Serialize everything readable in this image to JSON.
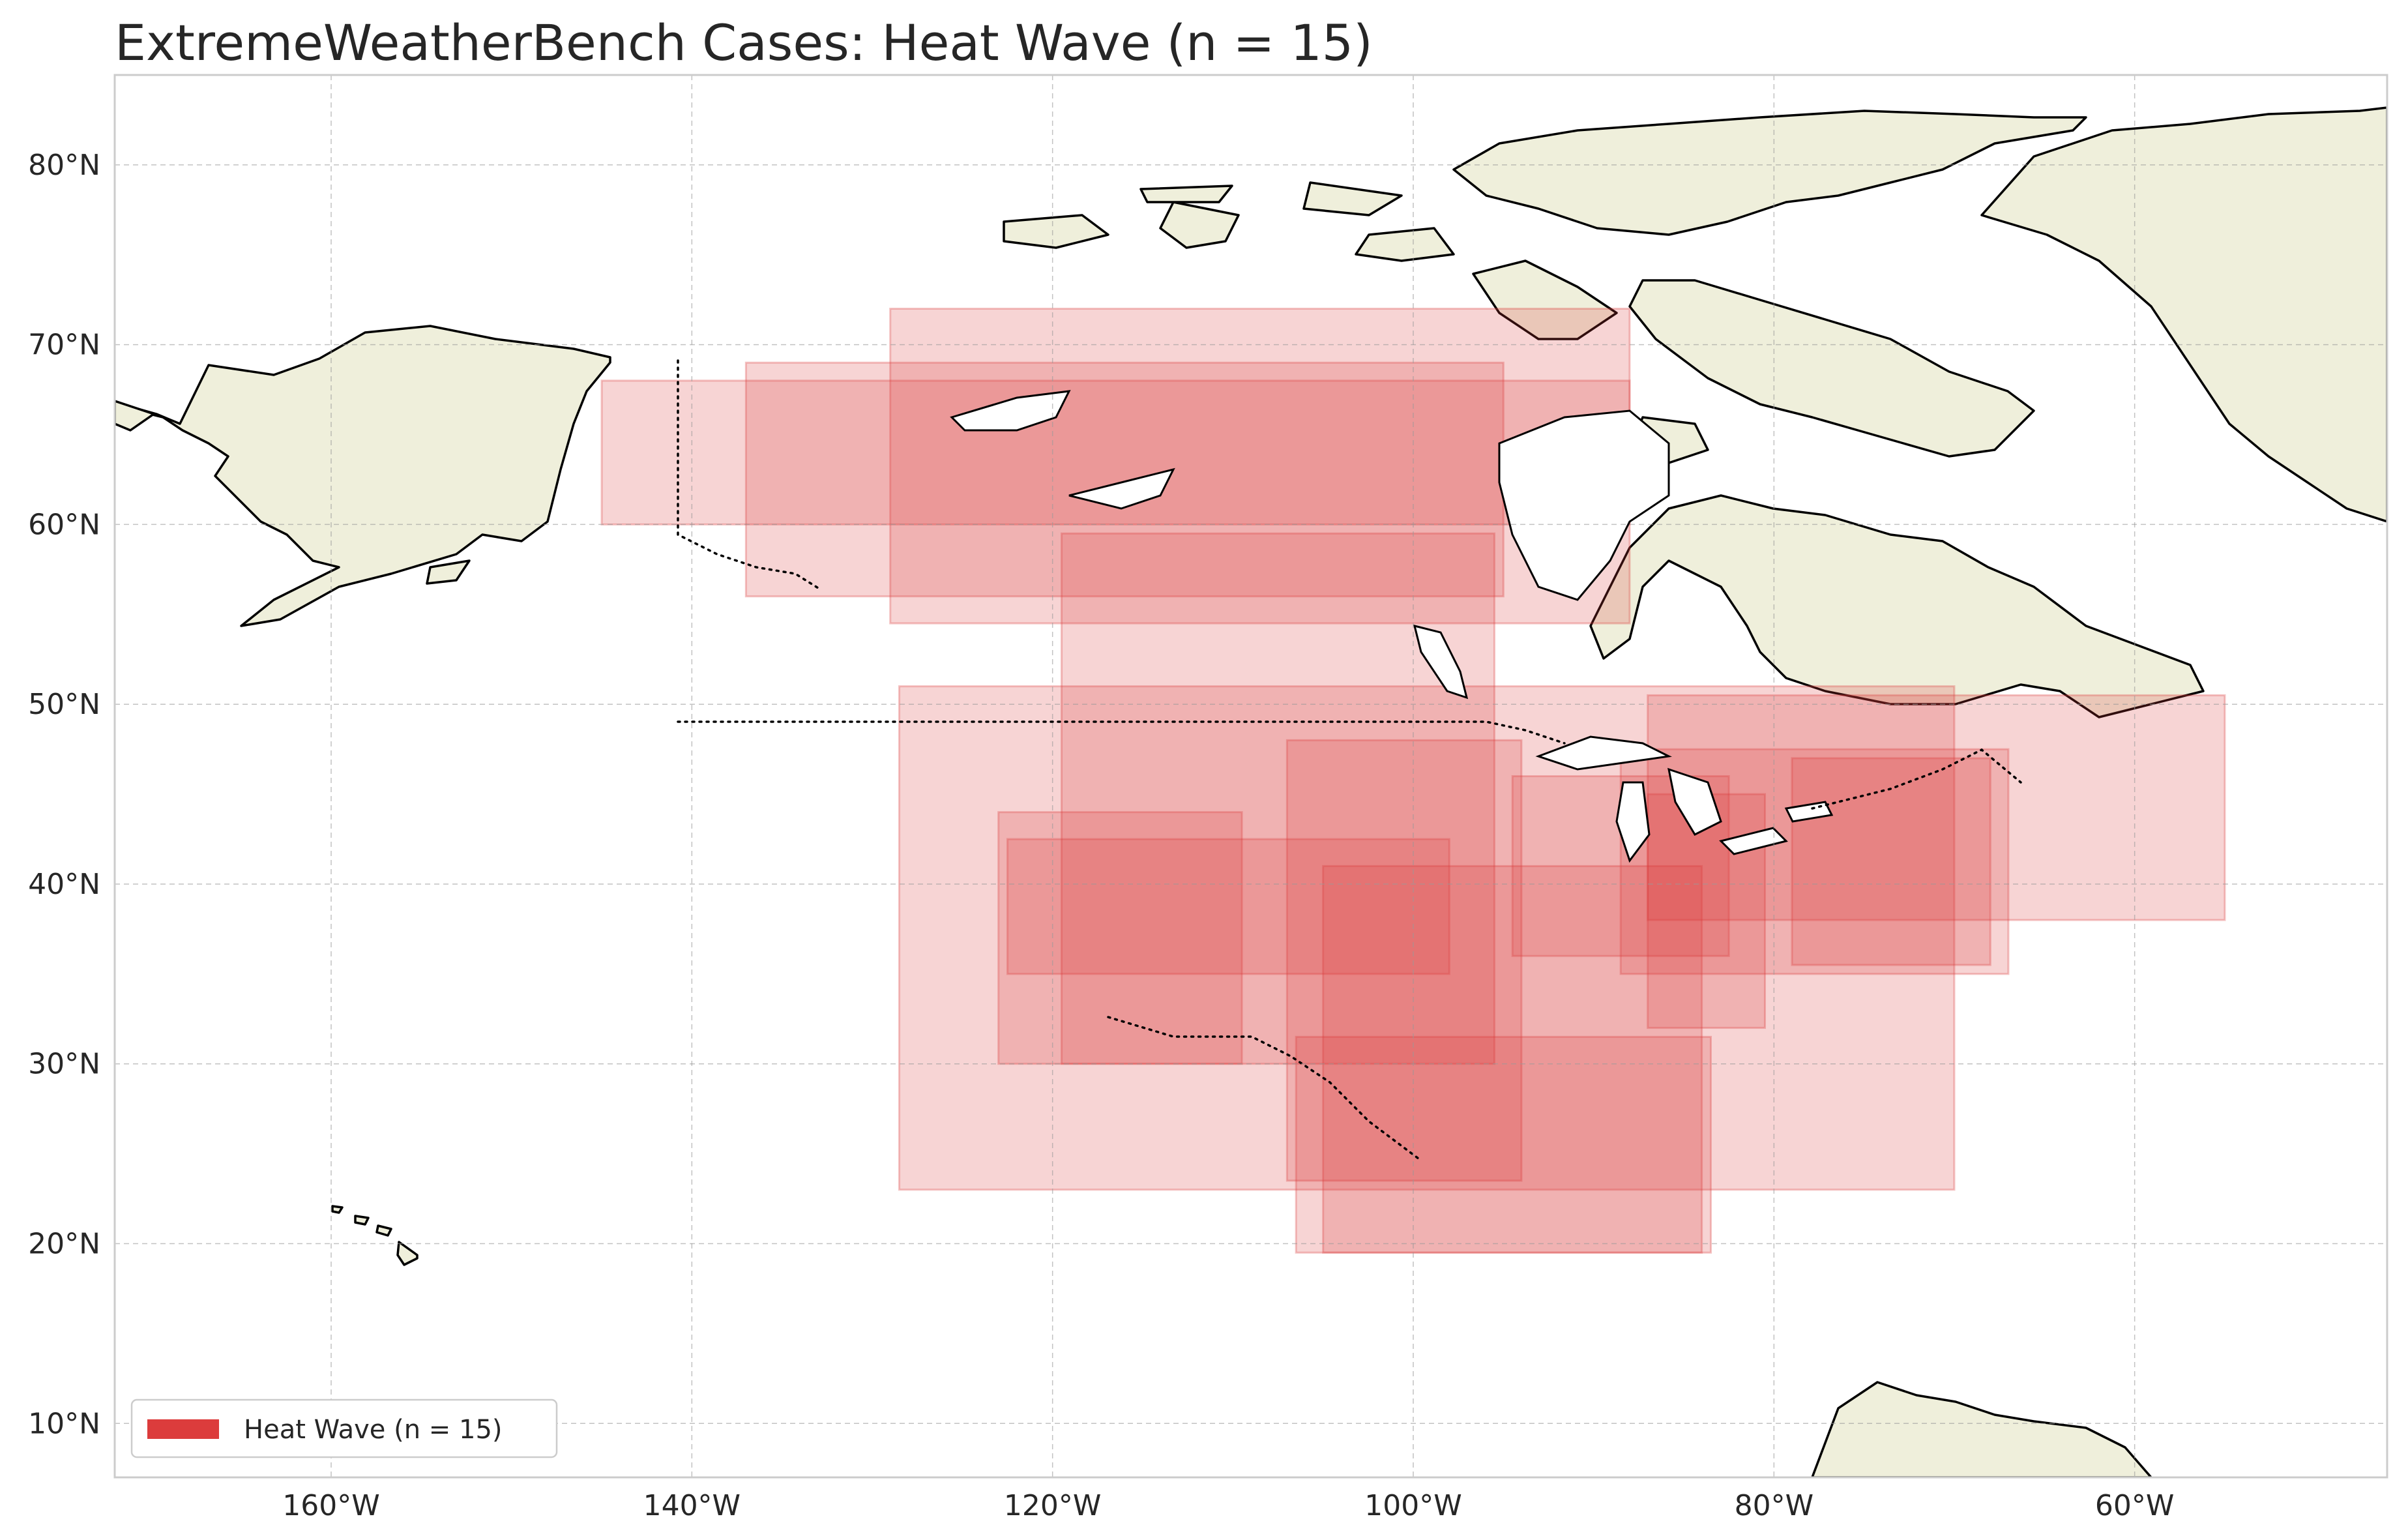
{
  "title": "ExtremeWeatherBench Cases: Heat Wave (n = 15)",
  "legend": {
    "label": "Heat Wave (n = 15)",
    "color": "#dc3c3c"
  },
  "colors": {
    "land": "#efefdb",
    "ocean": "#ffffff",
    "box": "#dc3c3c"
  },
  "axes": {
    "x_ticks": [
      "160°W",
      "140°W",
      "120°W",
      "100°W",
      "80°W",
      "60°W"
    ],
    "y_ticks": [
      "10°N",
      "20°N",
      "30°N",
      "40°N",
      "50°N",
      "60°N",
      "70°N",
      "80°N"
    ]
  },
  "map_data": {
    "type": "geographic_boxes",
    "projection": "equirectangular",
    "extent": {
      "lon": [
        -172,
        -46
      ],
      "lat": [
        7,
        85
      ]
    },
    "gridlines": true,
    "legend_position": "lower-left",
    "boxes": [
      {
        "lon": [
          -145,
          -88
        ],
        "lat": [
          60,
          68
        ]
      },
      {
        "lon": [
          -137,
          -95
        ],
        "lat": [
          56,
          69
        ]
      },
      {
        "lon": [
          -129,
          -88
        ],
        "lat": [
          54.5,
          72
        ]
      },
      {
        "lon": [
          -119.5,
          -95.5
        ],
        "lat": [
          30,
          59.5
        ]
      },
      {
        "lon": [
          -128.5,
          -70
        ],
        "lat": [
          23,
          51
        ]
      },
      {
        "lon": [
          -123,
          -109.5
        ],
        "lat": [
          30,
          44
        ]
      },
      {
        "lon": [
          -122.5,
          -98
        ],
        "lat": [
          35,
          42.5
        ]
      },
      {
        "lon": [
          -107,
          -94
        ],
        "lat": [
          23.5,
          48
        ]
      },
      {
        "lon": [
          -105,
          -84
        ],
        "lat": [
          19.5,
          41
        ]
      },
      {
        "lon": [
          -87,
          -80.5
        ],
        "lat": [
          32,
          45
        ]
      },
      {
        "lon": [
          -94.5,
          -82.5
        ],
        "lat": [
          36,
          46
        ]
      },
      {
        "lon": [
          -88.5,
          -67
        ],
        "lat": [
          35,
          47.5
        ]
      },
      {
        "lon": [
          -79,
          -68
        ],
        "lat": [
          35.5,
          47
        ]
      },
      {
        "lon": [
          -106.5,
          -83.5
        ],
        "lat": [
          19.5,
          31.5
        ]
      },
      {
        "lon": [
          -87,
          -55
        ],
        "lat": [
          38,
          50.5
        ]
      }
    ]
  }
}
